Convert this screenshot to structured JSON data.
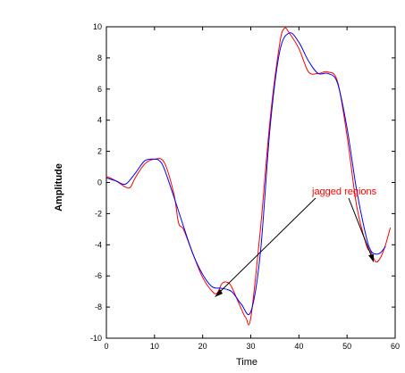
{
  "chart_data": {
    "type": "line",
    "xlabel": "Time",
    "ylabel": "Amplitude",
    "xlim": [
      0,
      60
    ],
    "ylim": [
      -10,
      10
    ],
    "xticks": [
      "0",
      "10",
      "20",
      "30",
      "40",
      "50",
      "60"
    ],
    "yticks": [
      "10",
      "8",
      "6",
      "4",
      "2",
      "0",
      "-2",
      "-4",
      "-6",
      "-8",
      "-10"
    ],
    "grid": false,
    "series": [
      {
        "color": "#ff0000",
        "x": [
          0,
          2,
          4,
          5,
          6,
          8,
          10,
          12,
          14,
          15,
          16,
          18,
          20,
          22,
          23,
          24,
          25,
          26,
          28,
          29,
          30,
          32,
          34,
          36,
          37,
          38,
          40,
          42,
          44,
          46,
          48,
          50,
          52,
          54,
          55,
          56,
          57,
          58,
          59
        ],
        "y": [
          0.4,
          0.1,
          -0.3,
          -0.3,
          0.3,
          1.2,
          1.5,
          1.3,
          -0.7,
          -2.6,
          -3.0,
          -4.6,
          -6.1,
          -7.0,
          -7.1,
          -6.5,
          -6.4,
          -6.7,
          -8.1,
          -8.7,
          -8.7,
          -3.0,
          4.0,
          8.9,
          9.9,
          9.6,
          8.6,
          7.1,
          7.0,
          7.1,
          6.5,
          3.0,
          -1.5,
          -4.0,
          -4.5,
          -5.1,
          -4.8,
          -4.0,
          -2.9
        ]
      },
      {
        "color": "#0000ff",
        "x": [
          0,
          2,
          4,
          6,
          8,
          10,
          11,
          12,
          14,
          16,
          18,
          20,
          22,
          24,
          26,
          28,
          30,
          32,
          34,
          36,
          38,
          40,
          42,
          44,
          46,
          48,
          50,
          52,
          54,
          55,
          56,
          57,
          58
        ],
        "y": [
          0.3,
          0.1,
          -0.1,
          0.6,
          1.4,
          1.5,
          1.4,
          0.9,
          -0.9,
          -2.8,
          -4.6,
          -5.9,
          -6.7,
          -6.8,
          -7.0,
          -7.8,
          -8.3,
          -4.5,
          3.5,
          8.4,
          9.6,
          9.0,
          7.8,
          7.0,
          7.0,
          6.4,
          3.5,
          -0.5,
          -3.5,
          -4.4,
          -4.6,
          -4.5,
          -4.1
        ]
      }
    ],
    "annotations": [
      {
        "text": "jagged regions",
        "color": "#ff0000",
        "x": 48,
        "y": -0.5
      }
    ]
  }
}
